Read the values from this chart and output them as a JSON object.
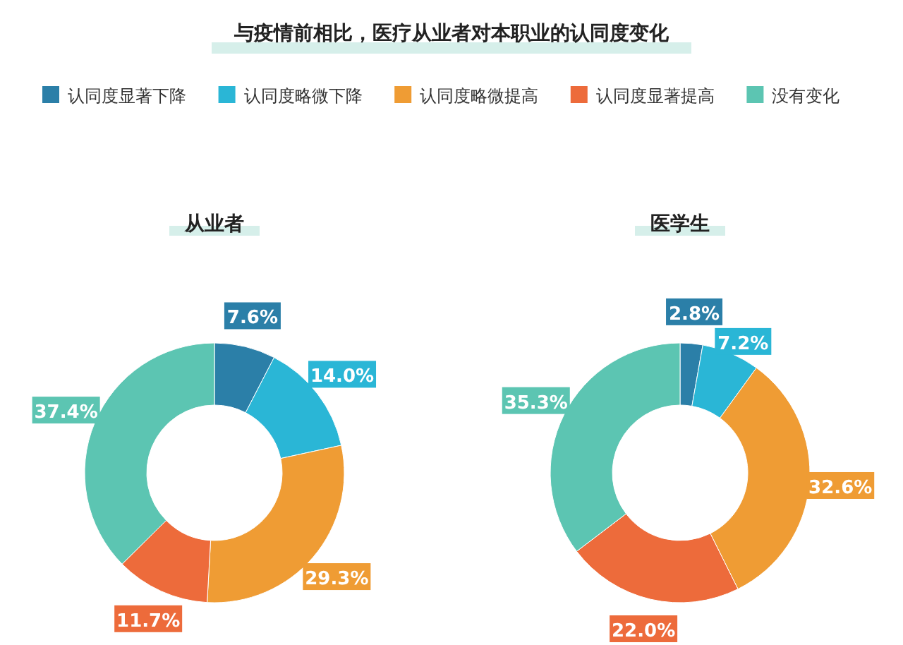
{
  "chart_data": [
    {
      "type": "donut",
      "title": "与疫情前相比，医疗从业者对本职业的认同度变化",
      "subtitle": "从业者",
      "legend": "top",
      "categories": [
        "认同度显著下降",
        "认同度略微下降",
        "认同度略微提高",
        "认同度显著提高",
        "没有变化"
      ],
      "values": [
        7.6,
        14.0,
        29.3,
        11.7,
        37.4
      ],
      "value_labels": [
        "7.6%",
        "14.0%",
        "29.3%",
        "11.7%",
        "37.4%"
      ],
      "colors": [
        "#2b7fa8",
        "#2ab6d6",
        "#ef9c34",
        "#ed6b3b",
        "#5cc5b2"
      ]
    },
    {
      "type": "donut",
      "subtitle": "医学生",
      "legend": false,
      "categories": [
        null,
        null,
        null,
        null,
        null
      ],
      "values": [
        2.8,
        7.2,
        32.6,
        22.0,
        35.3
      ],
      "value_labels": [
        "2.8%",
        "7.2%",
        "32.6%",
        "22.0%",
        "35.3%"
      ],
      "colors": [
        "#2b7fa8",
        "#2ab6d6",
        "#ef9c34",
        "#ed6b3b",
        "#5cc5b2"
      ]
    }
  ]
}
